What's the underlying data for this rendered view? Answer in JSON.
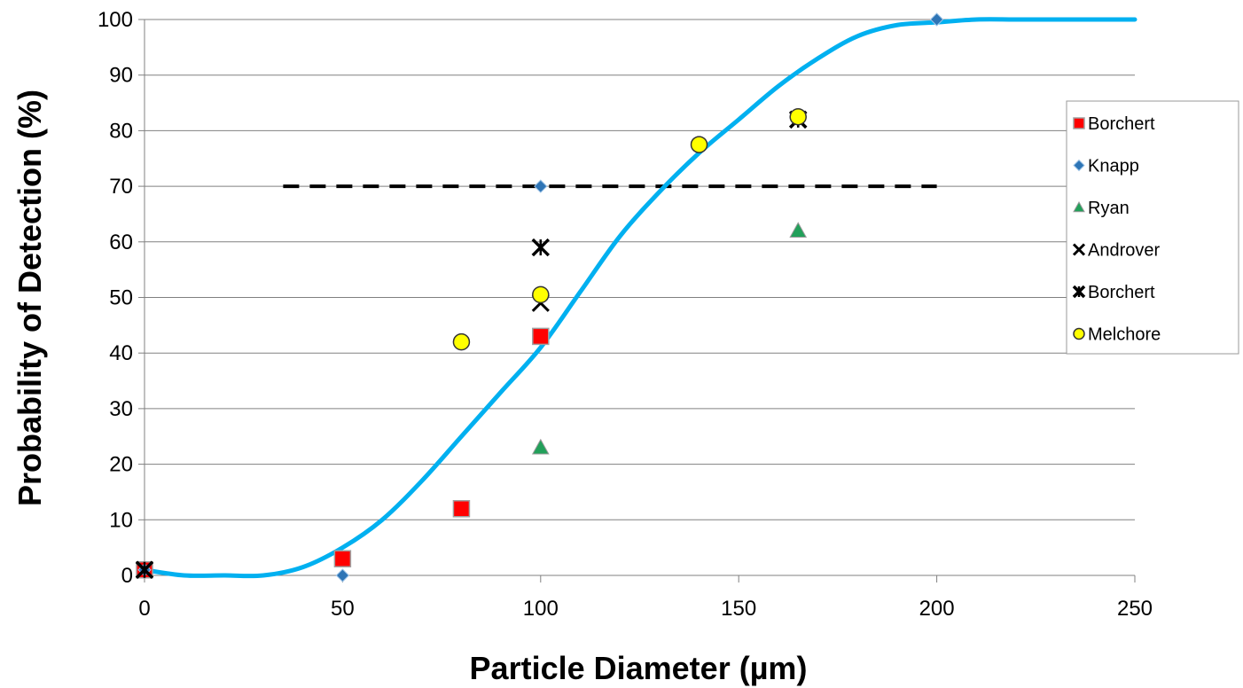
{
  "chart_data": {
    "type": "scatter",
    "title": "",
    "xlabel": "Particle Diameter (µm)",
    "ylabel": "Probability of Detection (%)",
    "xlim": [
      0,
      250
    ],
    "ylim": [
      0,
      100
    ],
    "xticks": [
      "0",
      "50",
      "100",
      "150",
      "200",
      "250"
    ],
    "yticks": [
      "0",
      "10",
      "20",
      "30",
      "40",
      "50",
      "60",
      "70",
      "80",
      "90",
      "100"
    ],
    "grid": "horizontal",
    "legend_position": "right",
    "series": [
      {
        "name": "Borchert",
        "marker": "square",
        "color": "#ff0000",
        "points": [
          [
            0,
            1
          ],
          [
            50,
            3
          ],
          [
            80,
            12
          ],
          [
            100,
            43
          ]
        ]
      },
      {
        "name": "Knapp",
        "marker": "diamond",
        "color": "#2e75b6",
        "points": [
          [
            0,
            1
          ],
          [
            50,
            0
          ],
          [
            100,
            70
          ],
          [
            200,
            100
          ]
        ]
      },
      {
        "name": "Ryan",
        "marker": "triangle",
        "color": "#22a05a",
        "points": [
          [
            100,
            23
          ],
          [
            165,
            62
          ]
        ]
      },
      {
        "name": "Androver",
        "marker": "x",
        "color": "#000000",
        "points": [
          [
            0,
            1
          ],
          [
            100,
            49
          ],
          [
            165,
            82
          ]
        ]
      },
      {
        "name": "Borchert",
        "marker": "star",
        "color": "#000000",
        "points": [
          [
            0,
            1
          ],
          [
            100,
            59
          ],
          [
            165,
            82
          ]
        ]
      },
      {
        "name": "Melchore",
        "marker": "circle",
        "color": "#ffff00",
        "points": [
          [
            80,
            42
          ],
          [
            100,
            50.5
          ],
          [
            140,
            77.5
          ],
          [
            165,
            82.5
          ]
        ]
      }
    ],
    "reference_line": {
      "y": 70,
      "x_start": 35,
      "x_end": 200,
      "style": "dashed",
      "color": "#000000"
    },
    "fit_curve": {
      "color": "#00b0f0",
      "points": [
        [
          0,
          1
        ],
        [
          10,
          0
        ],
        [
          20,
          0
        ],
        [
          30,
          0
        ],
        [
          40,
          1.5
        ],
        [
          50,
          5
        ],
        [
          60,
          10
        ],
        [
          70,
          17
        ],
        [
          80,
          25
        ],
        [
          90,
          33
        ],
        [
          100,
          41
        ],
        [
          110,
          51
        ],
        [
          120,
          61
        ],
        [
          130,
          69
        ],
        [
          140,
          76
        ],
        [
          150,
          82
        ],
        [
          160,
          88
        ],
        [
          170,
          93
        ],
        [
          180,
          97
        ],
        [
          190,
          99
        ],
        [
          200,
          99.5
        ],
        [
          210,
          100
        ],
        [
          220,
          100
        ],
        [
          230,
          100
        ],
        [
          240,
          100
        ],
        [
          250,
          100
        ]
      ]
    }
  }
}
